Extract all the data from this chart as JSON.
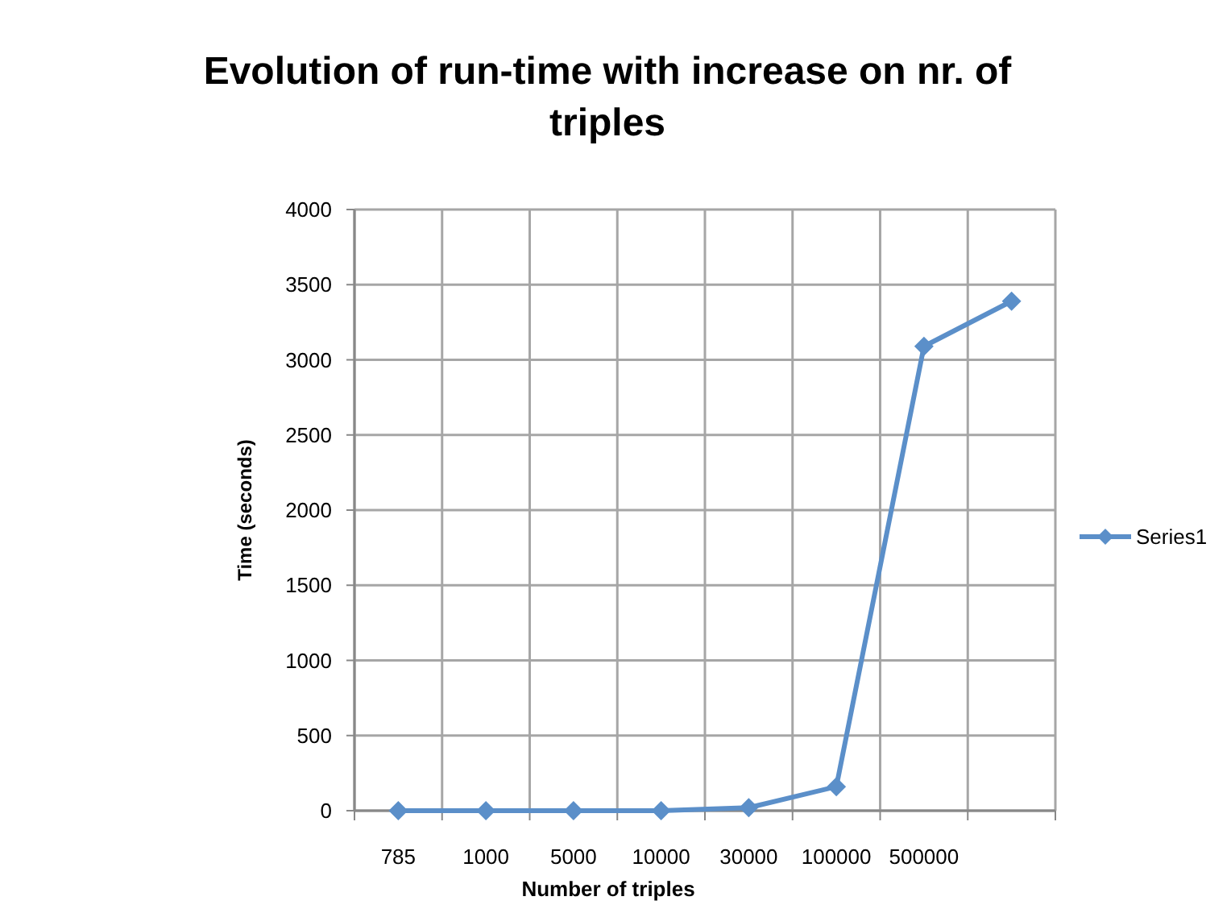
{
  "chart_data": {
    "type": "line",
    "title": "Evolution of run-time with increase on nr. of triples",
    "xlabel": "Number of triples",
    "ylabel": "Time (seconds)",
    "categories": [
      "785",
      "1000",
      "5000",
      "10000",
      "30000",
      "100000",
      "500000",
      null
    ],
    "series": [
      {
        "name": "Series1",
        "color": "#5b8fc9",
        "values": [
          0,
          0,
          0,
          0,
          20,
          160,
          3090,
          3390
        ]
      }
    ],
    "ylim": [
      0,
      4000
    ],
    "yticks": [
      0,
      500,
      1000,
      1500,
      2000,
      2500,
      3000,
      3500,
      4000
    ],
    "grid": true,
    "legend": "right",
    "marker": "diamond",
    "line_style": "solid"
  }
}
